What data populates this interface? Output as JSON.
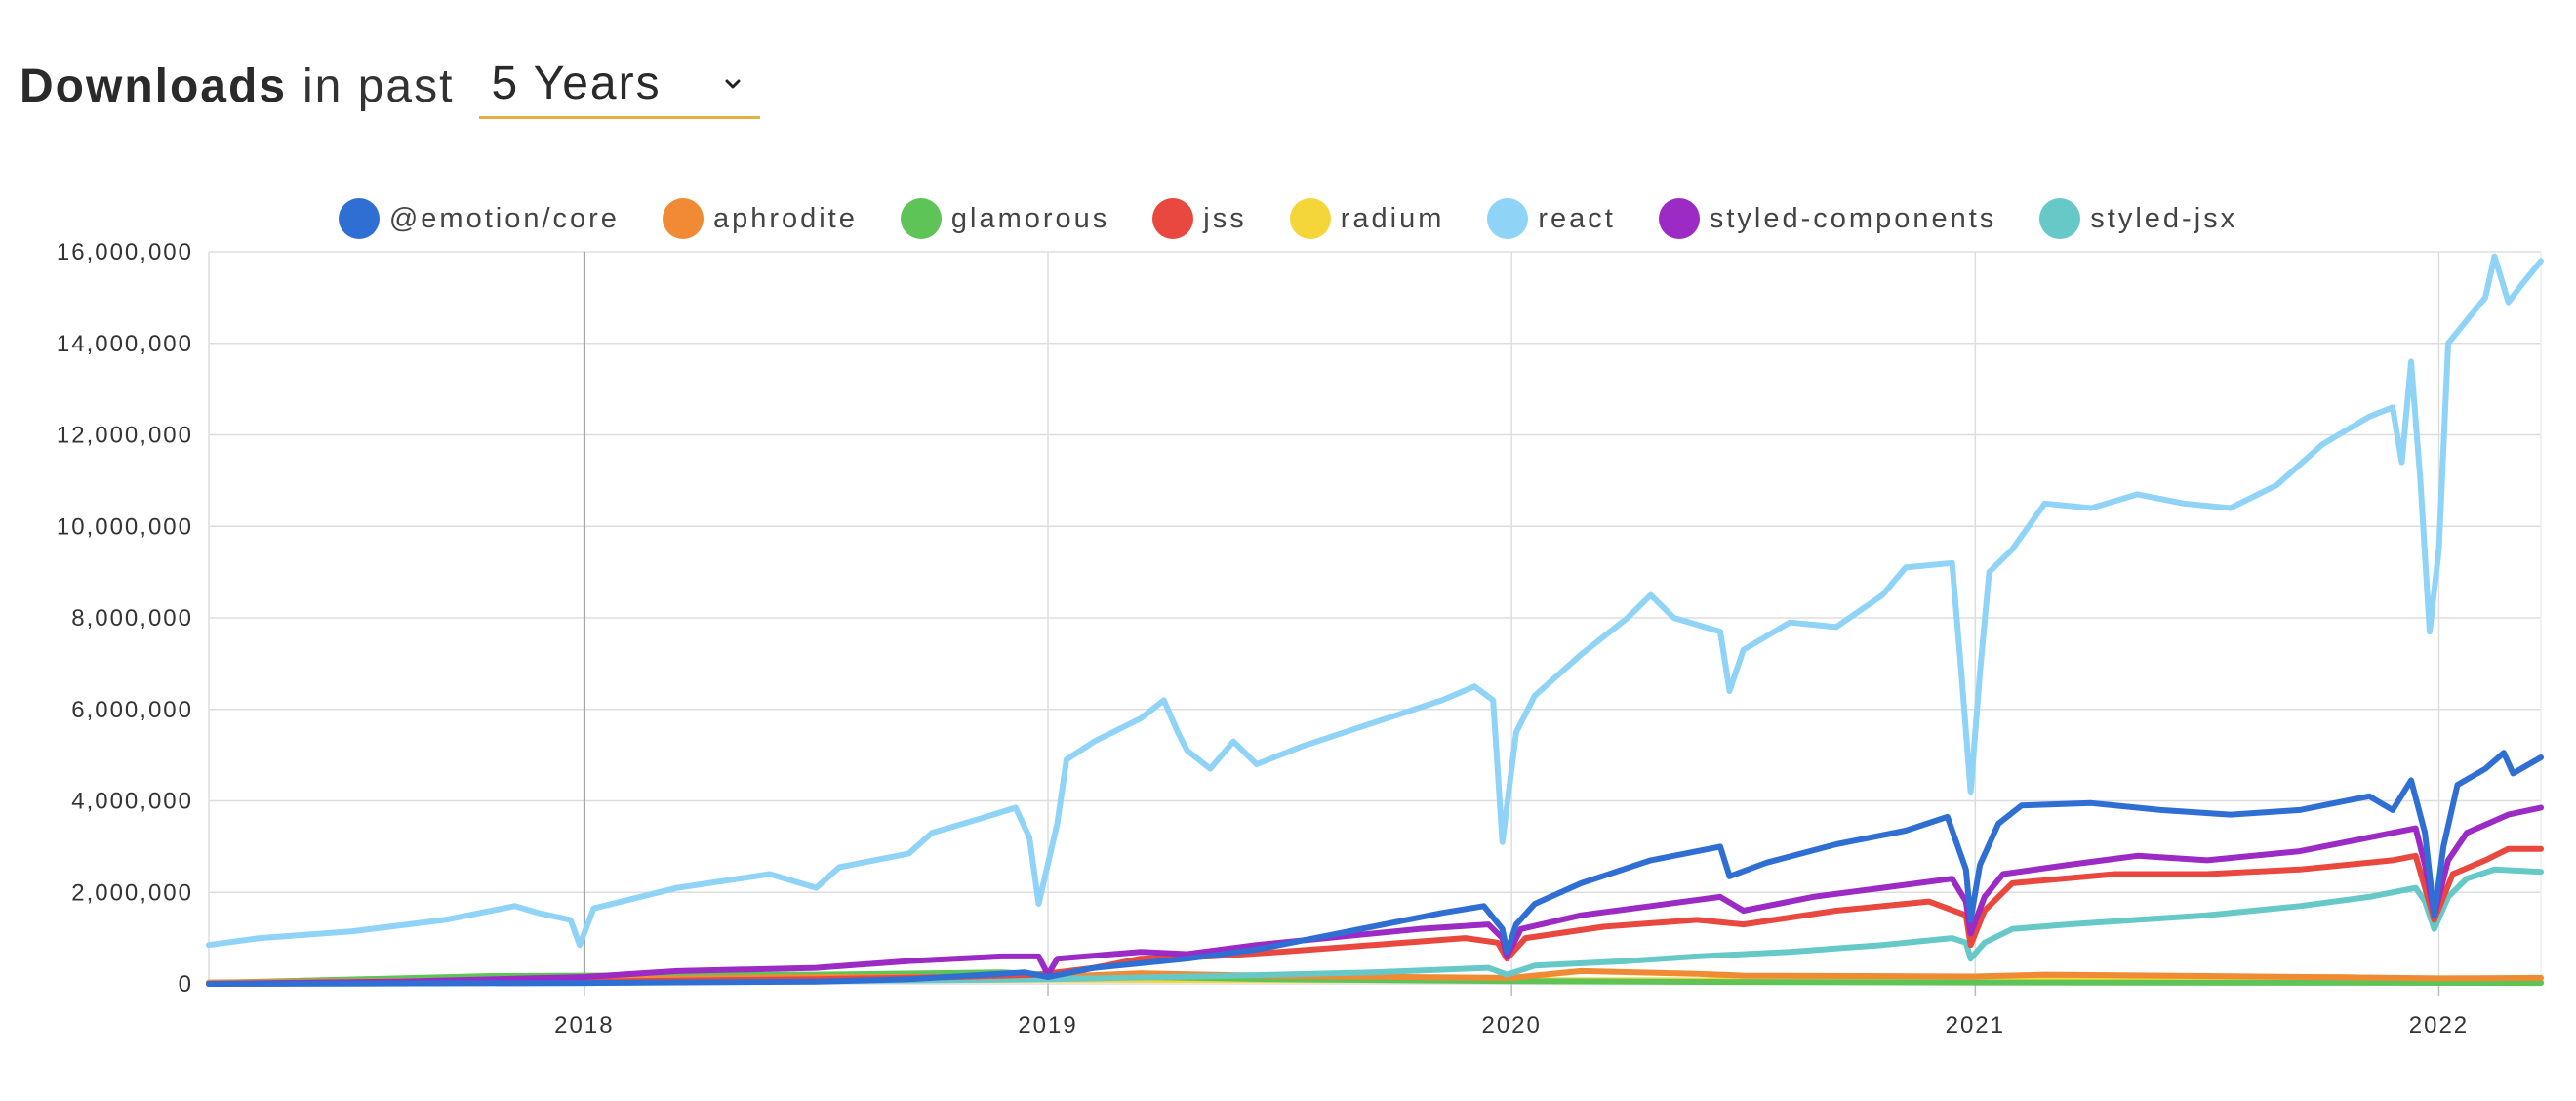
{
  "header": {
    "title_bold": "Downloads",
    "title_rest": "in past",
    "period_value": "5 Years",
    "chevron_icon": "chevron-down-icon",
    "accent_color": "#e3b341"
  },
  "chart_data": {
    "type": "line",
    "title": "",
    "xlabel": "",
    "ylabel": "",
    "legend_position": "top",
    "grid": true,
    "xlim": [
      2017.19,
      2022.22
    ],
    "ylim": [
      0,
      16000000
    ],
    "x_ticks": [
      {
        "x": 2018,
        "label": "2018"
      },
      {
        "x": 2019,
        "label": "2019"
      },
      {
        "x": 2020,
        "label": "2020"
      },
      {
        "x": 2021,
        "label": "2021"
      },
      {
        "x": 2022,
        "label": "2022"
      }
    ],
    "y_ticks": [
      {
        "y": 0,
        "label": "0"
      },
      {
        "y": 2000000,
        "label": "2,000,000"
      },
      {
        "y": 4000000,
        "label": "4,000,000"
      },
      {
        "y": 6000000,
        "label": "6,000,000"
      },
      {
        "y": 8000000,
        "label": "8,000,000"
      },
      {
        "y": 10000000,
        "label": "10,000,000"
      },
      {
        "y": 12000000,
        "label": "12,000,000"
      },
      {
        "y": 14000000,
        "label": "14,000,000"
      },
      {
        "y": 16000000,
        "label": "16,000,000"
      }
    ],
    "series": [
      {
        "name": "@emotion/core",
        "color": "#2f6fd4",
        "points": [
          [
            2017.19,
            0
          ],
          [
            2018.0,
            20000
          ],
          [
            2018.5,
            50000
          ],
          [
            2018.7,
            100000
          ],
          [
            2018.95,
            250000
          ],
          [
            2019.0,
            150000
          ],
          [
            2019.1,
            350000
          ],
          [
            2019.2,
            450000
          ],
          [
            2019.3,
            550000
          ],
          [
            2019.45,
            750000
          ],
          [
            2019.6,
            1050000
          ],
          [
            2019.75,
            1350000
          ],
          [
            2019.85,
            1550000
          ],
          [
            2019.94,
            1700000
          ],
          [
            2019.98,
            1200000
          ],
          [
            2019.99,
            700000
          ],
          [
            2020.01,
            1300000
          ],
          [
            2020.05,
            1750000
          ],
          [
            2020.15,
            2200000
          ],
          [
            2020.3,
            2700000
          ],
          [
            2020.45,
            3000000
          ],
          [
            2020.47,
            2350000
          ],
          [
            2020.55,
            2650000
          ],
          [
            2020.7,
            3050000
          ],
          [
            2020.85,
            3350000
          ],
          [
            2020.94,
            3650000
          ],
          [
            2020.98,
            2500000
          ],
          [
            2020.99,
            1400000
          ],
          [
            2021.01,
            2600000
          ],
          [
            2021.05,
            3500000
          ],
          [
            2021.1,
            3900000
          ],
          [
            2021.25,
            3950000
          ],
          [
            2021.4,
            3800000
          ],
          [
            2021.55,
            3700000
          ],
          [
            2021.7,
            3800000
          ],
          [
            2021.85,
            4100000
          ],
          [
            2021.9,
            3800000
          ],
          [
            2021.94,
            4450000
          ],
          [
            2021.97,
            3300000
          ],
          [
            2021.99,
            1500000
          ],
          [
            2022.01,
            3000000
          ],
          [
            2022.04,
            4350000
          ],
          [
            2022.1,
            4700000
          ],
          [
            2022.14,
            5050000
          ],
          [
            2022.16,
            4600000
          ],
          [
            2022.22,
            4950000
          ]
        ]
      },
      {
        "name": "aphrodite",
        "color": "#f08a35",
        "points": [
          [
            2017.19,
            30000
          ],
          [
            2017.6,
            60000
          ],
          [
            2018.0,
            100000
          ],
          [
            2018.5,
            150000
          ],
          [
            2019.0,
            150000
          ],
          [
            2019.2,
            230000
          ],
          [
            2019.5,
            170000
          ],
          [
            2020.0,
            130000
          ],
          [
            2020.15,
            280000
          ],
          [
            2020.4,
            220000
          ],
          [
            2020.5,
            180000
          ],
          [
            2021.0,
            160000
          ],
          [
            2021.15,
            200000
          ],
          [
            2021.5,
            170000
          ],
          [
            2022.0,
            120000
          ],
          [
            2022.22,
            130000
          ]
        ]
      },
      {
        "name": "glamorous",
        "color": "#5ec458",
        "points": [
          [
            2017.19,
            20000
          ],
          [
            2017.6,
            120000
          ],
          [
            2017.8,
            170000
          ],
          [
            2018.0,
            180000
          ],
          [
            2018.5,
            200000
          ],
          [
            2018.9,
            250000
          ],
          [
            2019.0,
            200000
          ],
          [
            2019.2,
            150000
          ],
          [
            2019.5,
            100000
          ],
          [
            2020.0,
            60000
          ],
          [
            2020.5,
            40000
          ],
          [
            2021.0,
            30000
          ],
          [
            2022.22,
            20000
          ]
        ]
      },
      {
        "name": "jss",
        "color": "#e8483e",
        "points": [
          [
            2017.19,
            0
          ],
          [
            2017.6,
            20000
          ],
          [
            2018.0,
            50000
          ],
          [
            2018.5,
            100000
          ],
          [
            2018.8,
            150000
          ],
          [
            2018.98,
            200000
          ],
          [
            2019.1,
            350000
          ],
          [
            2019.2,
            550000
          ],
          [
            2019.35,
            600000
          ],
          [
            2019.5,
            700000
          ],
          [
            2019.7,
            850000
          ],
          [
            2019.9,
            1000000
          ],
          [
            2019.97,
            900000
          ],
          [
            2019.99,
            550000
          ],
          [
            2020.03,
            1000000
          ],
          [
            2020.2,
            1250000
          ],
          [
            2020.4,
            1400000
          ],
          [
            2020.5,
            1300000
          ],
          [
            2020.7,
            1600000
          ],
          [
            2020.9,
            1800000
          ],
          [
            2020.98,
            1500000
          ],
          [
            2020.99,
            850000
          ],
          [
            2021.02,
            1600000
          ],
          [
            2021.08,
            2200000
          ],
          [
            2021.3,
            2400000
          ],
          [
            2021.5,
            2400000
          ],
          [
            2021.7,
            2500000
          ],
          [
            2021.9,
            2700000
          ],
          [
            2021.95,
            2800000
          ],
          [
            2021.99,
            1400000
          ],
          [
            2022.03,
            2400000
          ],
          [
            2022.1,
            2700000
          ],
          [
            2022.15,
            2950000
          ],
          [
            2022.22,
            2950000
          ]
        ]
      },
      {
        "name": "radium",
        "color": "#f5d63a",
        "points": [
          [
            2017.19,
            30000
          ],
          [
            2018.0,
            60000
          ],
          [
            2019.0,
            90000
          ],
          [
            2020.0,
            80000
          ],
          [
            2021.0,
            70000
          ],
          [
            2021.78,
            150000
          ],
          [
            2022.22,
            60000
          ]
        ]
      },
      {
        "name": "react",
        "color": "#8fd3f7",
        "points": [
          [
            2017.19,
            850000
          ],
          [
            2017.3,
            1000000
          ],
          [
            2017.5,
            1150000
          ],
          [
            2017.7,
            1400000
          ],
          [
            2017.85,
            1700000
          ],
          [
            2017.9,
            1550000
          ],
          [
            2017.97,
            1400000
          ],
          [
            2017.99,
            850000
          ],
          [
            2018.02,
            1650000
          ],
          [
            2018.2,
            2100000
          ],
          [
            2018.4,
            2400000
          ],
          [
            2018.5,
            2100000
          ],
          [
            2018.55,
            2550000
          ],
          [
            2018.7,
            2850000
          ],
          [
            2018.75,
            3300000
          ],
          [
            2018.85,
            3600000
          ],
          [
            2018.93,
            3850000
          ],
          [
            2018.96,
            3200000
          ],
          [
            2018.98,
            1750000
          ],
          [
            2019.02,
            3500000
          ],
          [
            2019.04,
            4900000
          ],
          [
            2019.1,
            5300000
          ],
          [
            2019.2,
            5800000
          ],
          [
            2019.25,
            6200000
          ],
          [
            2019.28,
            5500000
          ],
          [
            2019.3,
            5100000
          ],
          [
            2019.35,
            4700000
          ],
          [
            2019.4,
            5300000
          ],
          [
            2019.45,
            4800000
          ],
          [
            2019.55,
            5200000
          ],
          [
            2019.7,
            5700000
          ],
          [
            2019.85,
            6200000
          ],
          [
            2019.92,
            6500000
          ],
          [
            2019.96,
            6200000
          ],
          [
            2019.98,
            3100000
          ],
          [
            2020.01,
            5500000
          ],
          [
            2020.05,
            6300000
          ],
          [
            2020.15,
            7200000
          ],
          [
            2020.25,
            8000000
          ],
          [
            2020.3,
            8500000
          ],
          [
            2020.35,
            8000000
          ],
          [
            2020.45,
            7700000
          ],
          [
            2020.47,
            6400000
          ],
          [
            2020.5,
            7300000
          ],
          [
            2020.6,
            7900000
          ],
          [
            2020.7,
            7800000
          ],
          [
            2020.8,
            8500000
          ],
          [
            2020.85,
            9100000
          ],
          [
            2020.95,
            9200000
          ],
          [
            2020.97,
            6800000
          ],
          [
            2020.99,
            4200000
          ],
          [
            2021.01,
            6800000
          ],
          [
            2021.03,
            9000000
          ],
          [
            2021.08,
            9500000
          ],
          [
            2021.15,
            10500000
          ],
          [
            2021.25,
            10400000
          ],
          [
            2021.35,
            10700000
          ],
          [
            2021.45,
            10500000
          ],
          [
            2021.55,
            10400000
          ],
          [
            2021.65,
            10900000
          ],
          [
            2021.75,
            11800000
          ],
          [
            2021.85,
            12400000
          ],
          [
            2021.9,
            12600000
          ],
          [
            2021.92,
            11400000
          ],
          [
            2021.94,
            13600000
          ],
          [
            2021.96,
            11000000
          ],
          [
            2021.98,
            7700000
          ],
          [
            2022.0,
            9500000
          ],
          [
            2022.02,
            14000000
          ],
          [
            2022.06,
            14500000
          ],
          [
            2022.1,
            15000000
          ],
          [
            2022.12,
            15900000
          ],
          [
            2022.15,
            14900000
          ],
          [
            2022.18,
            15300000
          ],
          [
            2022.22,
            15800000
          ]
        ]
      },
      {
        "name": "styled-components",
        "color": "#9b2bc4",
        "points": [
          [
            2017.19,
            0
          ],
          [
            2017.6,
            50000
          ],
          [
            2018.0,
            150000
          ],
          [
            2018.2,
            280000
          ],
          [
            2018.5,
            350000
          ],
          [
            2018.7,
            500000
          ],
          [
            2018.9,
            600000
          ],
          [
            2018.98,
            600000
          ],
          [
            2019.0,
            200000
          ],
          [
            2019.02,
            550000
          ],
          [
            2019.2,
            700000
          ],
          [
            2019.3,
            650000
          ],
          [
            2019.45,
            850000
          ],
          [
            2019.6,
            1000000
          ],
          [
            2019.8,
            1200000
          ],
          [
            2019.95,
            1300000
          ],
          [
            2019.98,
            1000000
          ],
          [
            2019.99,
            600000
          ],
          [
            2020.02,
            1200000
          ],
          [
            2020.15,
            1500000
          ],
          [
            2020.3,
            1700000
          ],
          [
            2020.45,
            1900000
          ],
          [
            2020.5,
            1600000
          ],
          [
            2020.65,
            1900000
          ],
          [
            2020.8,
            2100000
          ],
          [
            2020.95,
            2300000
          ],
          [
            2020.98,
            1800000
          ],
          [
            2020.99,
            1100000
          ],
          [
            2021.02,
            1900000
          ],
          [
            2021.06,
            2400000
          ],
          [
            2021.2,
            2600000
          ],
          [
            2021.35,
            2800000
          ],
          [
            2021.5,
            2700000
          ],
          [
            2021.7,
            2900000
          ],
          [
            2021.85,
            3200000
          ],
          [
            2021.95,
            3400000
          ],
          [
            2021.97,
            2600000
          ],
          [
            2021.99,
            1500000
          ],
          [
            2022.02,
            2700000
          ],
          [
            2022.06,
            3300000
          ],
          [
            2022.15,
            3700000
          ],
          [
            2022.22,
            3850000
          ]
        ]
      },
      {
        "name": "styled-jsx",
        "color": "#66c9c8",
        "points": [
          [
            2017.19,
            0
          ],
          [
            2018.0,
            20000
          ],
          [
            2018.5,
            60000
          ],
          [
            2019.0,
            100000
          ],
          [
            2019.4,
            180000
          ],
          [
            2019.7,
            250000
          ],
          [
            2019.95,
            350000
          ],
          [
            2019.99,
            200000
          ],
          [
            2020.05,
            400000
          ],
          [
            2020.25,
            500000
          ],
          [
            2020.4,
            600000
          ],
          [
            2020.6,
            700000
          ],
          [
            2020.8,
            850000
          ],
          [
            2020.95,
            1000000
          ],
          [
            2020.98,
            900000
          ],
          [
            2020.99,
            550000
          ],
          [
            2021.02,
            900000
          ],
          [
            2021.08,
            1200000
          ],
          [
            2021.2,
            1300000
          ],
          [
            2021.35,
            1400000
          ],
          [
            2021.5,
            1500000
          ],
          [
            2021.7,
            1700000
          ],
          [
            2021.85,
            1900000
          ],
          [
            2021.95,
            2100000
          ],
          [
            2021.97,
            1800000
          ],
          [
            2021.99,
            1200000
          ],
          [
            2022.02,
            1900000
          ],
          [
            2022.06,
            2300000
          ],
          [
            2022.12,
            2500000
          ],
          [
            2022.22,
            2450000
          ]
        ]
      }
    ]
  }
}
